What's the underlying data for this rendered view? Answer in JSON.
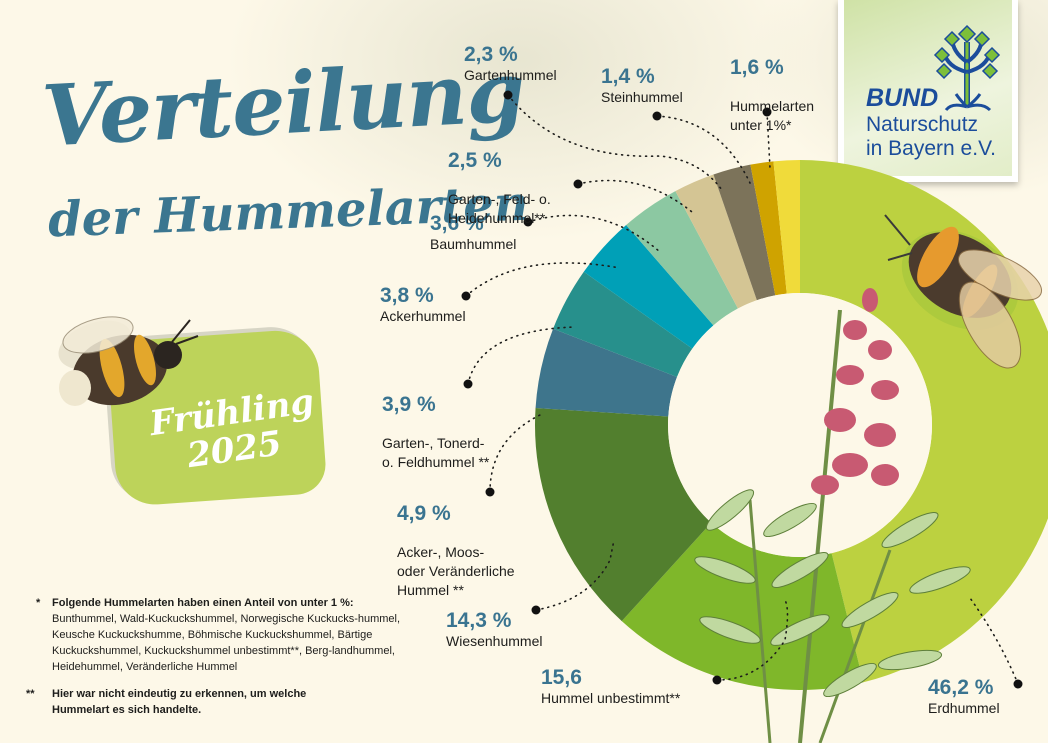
{
  "title": {
    "line1": "Verteilung",
    "line2": "der Hummelarten"
  },
  "season": {
    "line1": "Frühling",
    "line2": "2025"
  },
  "logo": {
    "brand": "BUND",
    "line1": "Naturschutz",
    "line2": "in Bayern e.V."
  },
  "labels": [
    {
      "pct": "46,2 %",
      "name": "Erdhummel"
    },
    {
      "pct": "15,6",
      "name": "Hummel unbestimmt**"
    },
    {
      "pct": "14,3 %",
      "name": "Wiesenhummel"
    },
    {
      "pct": "4,9 %",
      "name": "Acker-, Moos-\noder Veränderliche\nHummel **"
    },
    {
      "pct": "3,9 %",
      "name": "Garten-, Tonerd-\no. Feldhummel **"
    },
    {
      "pct": "3,8 %",
      "name": "Ackerhummel"
    },
    {
      "pct": "3,6 %",
      "name": "Baumhummel"
    },
    {
      "pct": "2,5 %",
      "name": "Garten-, Feld- o.\nHeidehummel**"
    },
    {
      "pct": "2,3 %",
      "name": "Gartenhummel"
    },
    {
      "pct": "1,4 %",
      "name": "Steinhummel"
    },
    {
      "pct": "1,6 %",
      "name": "Hummelarten\nunter 1%*"
    }
  ],
  "footnotes": {
    "star_mark": "*",
    "star_heading": "Folgende Hummelarten haben einen Anteil von unter 1 %:",
    "star_body": "Bunthummel, Wald-Kuckuckshummel, Norwegische Kuckucks-hummel, Keusche Kuckuckshumme, Böhmische Kuckuckshummel, Bärtige Kuckuckshummel, Kuckuckshummel unbestimmt**, Berg-landhummel, Heidehummel, Veränderliche Hummel",
    "dstar_mark": "**",
    "dstar_body": "Hier war nicht eindeutig zu erkennen, um welche Hummelart es sich handelte."
  },
  "chart_data": {
    "type": "pie",
    "variant": "donut",
    "title": "Verteilung der Hummelarten – Frühling 2025",
    "start_angle": "12 o'clock, clockwise",
    "categories": [
      "Erdhummel",
      "Hummel unbestimmt**",
      "Wiesenhummel",
      "Acker-, Moos- oder Veränderliche Hummel **",
      "Garten-, Tonerd- o. Feldhummel **",
      "Ackerhummel",
      "Baumhummel",
      "Garten-, Feld- o. Heidehummel**",
      "Gartenhummel",
      "Steinhummel",
      "Hummelarten unter 1%*"
    ],
    "values": [
      46.2,
      15.6,
      14.3,
      4.9,
      3.9,
      3.8,
      3.6,
      2.5,
      2.3,
      1.4,
      1.6
    ],
    "colors": [
      "#bcd140",
      "#7fb72a",
      "#527f2e",
      "#3e758c",
      "#27908c",
      "#00a0b7",
      "#8cc8a2",
      "#d4c594",
      "#7c735a",
      "#cfa300",
      "#f0db3a"
    ],
    "unit": "%",
    "legend": "callout labels with dotted leader lines"
  }
}
